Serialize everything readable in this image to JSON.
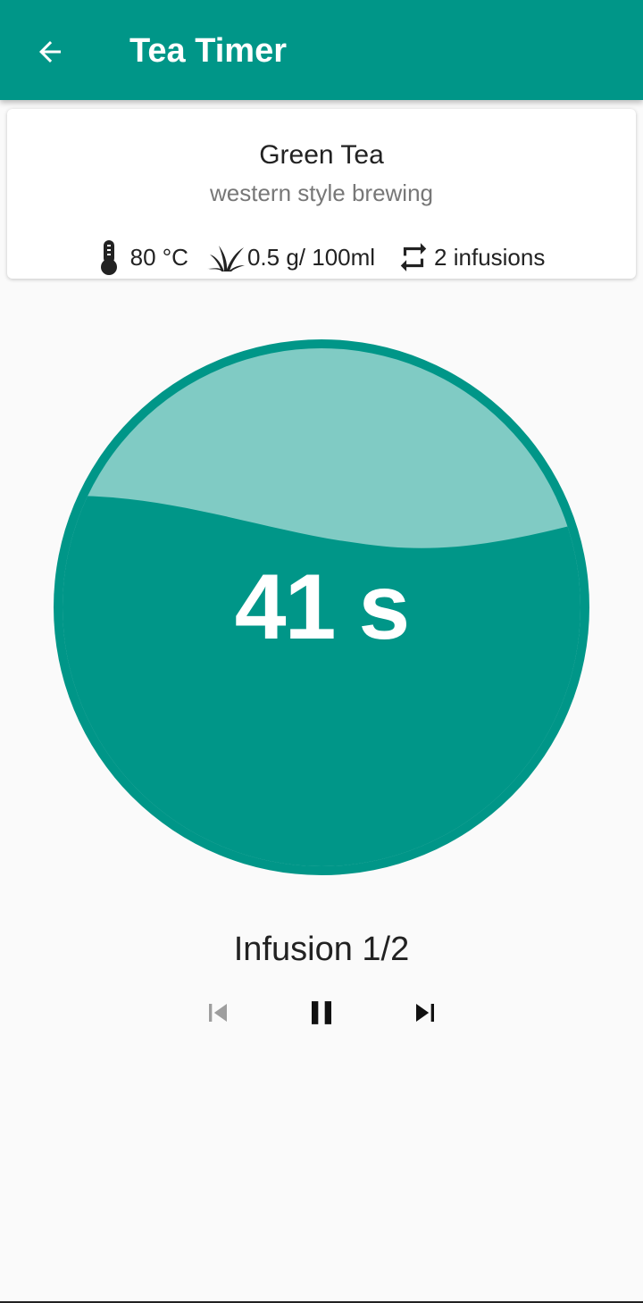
{
  "appbar": {
    "title": "Tea Timer",
    "color": "#009688"
  },
  "tea": {
    "name": "Green Tea",
    "style": "western style brewing",
    "temperature": "80 °C",
    "amount": "0.5 g/ 100ml",
    "infusions": "2 infusions"
  },
  "timer": {
    "remaining": "41 s",
    "progress_fraction": 0.6,
    "fill_color": "#009688",
    "empty_color": "#80cbc4"
  },
  "infusion": {
    "label": "Infusion 1/2"
  },
  "controls": {
    "previous": "skip-previous-icon",
    "pause": "pause-icon",
    "next": "skip-next-icon"
  }
}
